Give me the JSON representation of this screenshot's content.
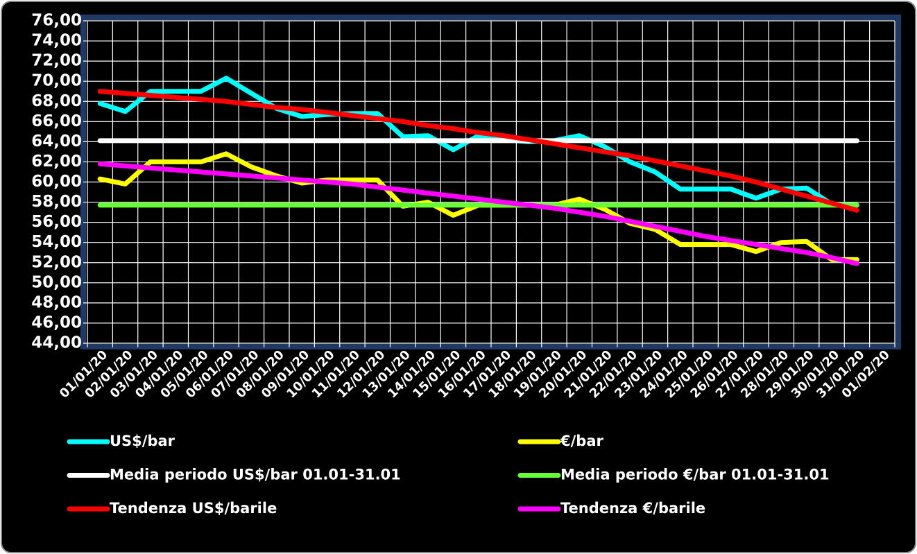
{
  "chart_data": {
    "type": "line",
    "categories": [
      "01/01/20",
      "02/01/20",
      "03/01/20",
      "04/01/20",
      "05/01/20",
      "06/01/20",
      "07/01/20",
      "08/01/20",
      "09/01/20",
      "10/01/20",
      "11/01/20",
      "12/01/20",
      "13/01/20",
      "14/01/20",
      "15/01/20",
      "16/01/20",
      "17/01/20",
      "18/01/20",
      "19/01/20",
      "20/01/20",
      "21/01/20",
      "22/01/20",
      "23/01/20",
      "24/01/20",
      "25/01/20",
      "26/01/20",
      "27/01/20",
      "28/01/20",
      "29/01/20",
      "30/01/20",
      "31/01/20",
      "01/02/20"
    ],
    "series": [
      {
        "name": "US$/bar",
        "color": "#00ffff",
        "values": [
          67.8,
          67.0,
          69.0,
          69.0,
          69.0,
          70.3,
          68.8,
          67.3,
          66.5,
          66.7,
          66.8,
          66.8,
          64.5,
          64.6,
          63.2,
          64.6,
          64.2,
          64.0,
          64.1,
          64.6,
          63.5,
          62.0,
          61.0,
          59.3,
          59.3,
          59.3,
          58.4,
          59.3,
          59.4,
          57.8,
          57.7,
          null
        ]
      },
      {
        "name": "€/bar",
        "color": "#ffff00",
        "values": [
          60.3,
          59.8,
          62.0,
          62.0,
          62.0,
          62.8,
          61.5,
          60.6,
          59.9,
          60.2,
          60.2,
          60.2,
          57.6,
          58.0,
          56.7,
          57.7,
          57.7,
          57.7,
          57.7,
          58.3,
          57.3,
          55.9,
          55.3,
          53.8,
          53.8,
          53.8,
          53.1,
          54.0,
          54.1,
          52.3,
          52.3,
          null
        ]
      },
      {
        "name": "Media periodo US$/bar 01.01-31.01",
        "color": "#ffffff",
        "values": [
          64.1,
          64.1,
          64.1,
          64.1,
          64.1,
          64.1,
          64.1,
          64.1,
          64.1,
          64.1,
          64.1,
          64.1,
          64.1,
          64.1,
          64.1,
          64.1,
          64.1,
          64.1,
          64.1,
          64.1,
          64.1,
          64.1,
          64.1,
          64.1,
          64.1,
          64.1,
          64.1,
          64.1,
          64.1,
          64.1,
          64.1,
          null
        ]
      },
      {
        "name": "Media periodo €/bar 01.01-31.01",
        "color": "#66ff33",
        "values": [
          57.7,
          57.7,
          57.7,
          57.7,
          57.7,
          57.7,
          57.7,
          57.7,
          57.7,
          57.7,
          57.7,
          57.7,
          57.7,
          57.7,
          57.7,
          57.7,
          57.7,
          57.7,
          57.7,
          57.7,
          57.7,
          57.7,
          57.7,
          57.7,
          57.7,
          57.7,
          57.7,
          57.7,
          57.7,
          57.7,
          57.7,
          null
        ]
      },
      {
        "name": "Tendenza US$/barile",
        "color": "#ff0000",
        "values": [
          69.0,
          68.8,
          68.6,
          68.4,
          68.2,
          68.0,
          67.7,
          67.4,
          67.2,
          66.9,
          66.6,
          66.3,
          66.0,
          65.6,
          65.3,
          64.9,
          64.6,
          64.2,
          63.8,
          63.4,
          63.0,
          62.6,
          62.1,
          61.6,
          61.1,
          60.6,
          60.0,
          59.3,
          58.6,
          57.9,
          57.2,
          null
        ]
      },
      {
        "name": "Tendenza €/barile",
        "color": "#ff00ff",
        "values": [
          61.8,
          61.6,
          61.4,
          61.2,
          61.0,
          60.8,
          60.6,
          60.4,
          60.2,
          60.0,
          59.8,
          59.5,
          59.2,
          58.9,
          58.6,
          58.3,
          58.0,
          57.7,
          57.4,
          57.0,
          56.6,
          56.1,
          55.6,
          55.1,
          54.6,
          54.2,
          53.8,
          53.4,
          53.0,
          52.5,
          51.9,
          null
        ]
      }
    ],
    "ylim": [
      44,
      76
    ],
    "yticks": [
      {
        "value": 44,
        "label": "44,00"
      },
      {
        "value": 46,
        "label": "46,00"
      },
      {
        "value": 48,
        "label": "48,00"
      },
      {
        "value": 50,
        "label": "50,00"
      },
      {
        "value": 52,
        "label": "52,00"
      },
      {
        "value": 54,
        "label": "54,00"
      },
      {
        "value": 56,
        "label": "56,00"
      },
      {
        "value": 58,
        "label": "58,00"
      },
      {
        "value": 60,
        "label": "60,00"
      },
      {
        "value": 62,
        "label": "62,00"
      },
      {
        "value": 64,
        "label": "64,00"
      },
      {
        "value": 66,
        "label": "66,00"
      },
      {
        "value": 68,
        "label": "68,00"
      },
      {
        "value": 70,
        "label": "70,00"
      },
      {
        "value": 72,
        "label": "72,00"
      },
      {
        "value": 74,
        "label": "74,00"
      },
      {
        "value": 76,
        "label": "76,00"
      }
    ],
    "grid": true,
    "legend": "bottom"
  }
}
